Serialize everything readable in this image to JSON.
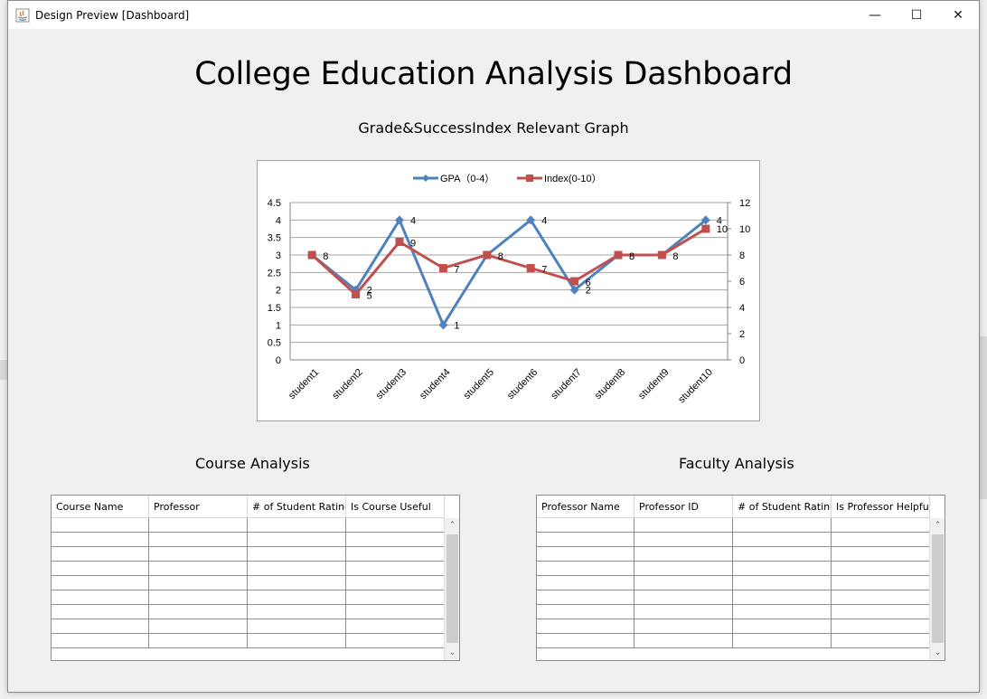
{
  "window": {
    "title": "Design Preview [Dashboard]",
    "controls": {
      "minimize": "—",
      "maximize": "☐",
      "close": "✕"
    }
  },
  "dashboard": {
    "title": "College Education Analysis Dashboard"
  },
  "chart": {
    "title": "Grade&SuccessIndex Relevant Graph"
  },
  "chart_data": {
    "type": "line",
    "categories": [
      "student1",
      "student2",
      "student3",
      "student4",
      "student5",
      "student6",
      "student7",
      "student8",
      "student9",
      "student10"
    ],
    "series": [
      {
        "name": "GPA（0-4）",
        "axis": "left",
        "color": "#4f81bd",
        "marker": "diamond",
        "values": [
          3,
          2,
          4,
          1,
          3,
          4,
          2,
          3,
          3,
          4
        ],
        "labels": [
          "",
          "2",
          "4",
          "1",
          "",
          "4",
          "2",
          "",
          "",
          "4"
        ]
      },
      {
        "name": "Index(0-10）",
        "axis": "right",
        "color": "#c0504d",
        "marker": "square",
        "values": [
          8,
          5,
          9,
          7,
          8,
          7,
          6,
          8,
          8,
          10
        ],
        "labels": [
          "8",
          "5",
          "9",
          "7",
          "8",
          "7",
          "6",
          "8",
          "8",
          "10"
        ]
      }
    ],
    "y_left": {
      "ticks": [
        "4.5",
        "4",
        "3.5",
        "3",
        "2.5",
        "2",
        "1.5",
        "1",
        "0.5",
        "0"
      ],
      "ylim": [
        0,
        4.5
      ]
    },
    "y_right": {
      "ticks": [
        "12",
        "10",
        "8",
        "6",
        "4",
        "2",
        "0"
      ],
      "ylim": [
        0,
        12
      ]
    },
    "legend_position": "top",
    "grid": true
  },
  "course_analysis": {
    "title": "Course Analysis",
    "columns": [
      "Course Name",
      "Professor",
      "# of Student Rating",
      "Is Course Useful"
    ],
    "row_count": 9,
    "scroll_up": "⌃",
    "scroll_down": "⌄"
  },
  "faculty_analysis": {
    "title": "Faculty Analysis",
    "columns": [
      "Professor Name",
      "Professor ID",
      "# of Student Rating",
      "Is Professor Helpful"
    ],
    "row_count": 9,
    "scroll_up": "⌃",
    "scroll_down": "⌄"
  }
}
